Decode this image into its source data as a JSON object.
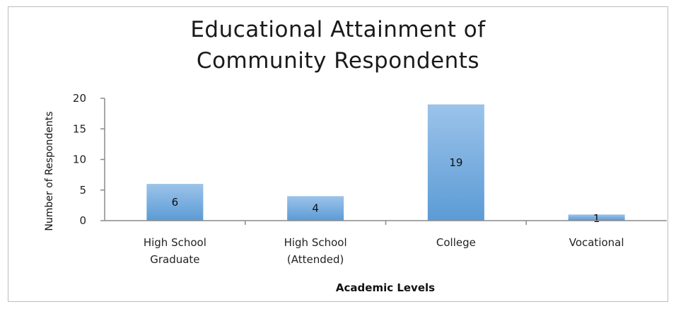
{
  "chart_data": {
    "type": "bar",
    "title_lines": [
      "Educational Attainment of",
      "Community Respondents"
    ],
    "categories": [
      [
        "High School",
        "Graduate"
      ],
      [
        "High School",
        "(Attended)"
      ],
      [
        "College"
      ],
      [
        "Vocational"
      ]
    ],
    "values": [
      6,
      4,
      19,
      1
    ],
    "data_labels": [
      "6",
      "4",
      "19",
      "1"
    ],
    "xlabel": "Academic Levels",
    "ylabel": "Number of Respondents",
    "ylim": [
      0,
      20
    ],
    "yticks": [
      0,
      5,
      10,
      15,
      20
    ],
    "grid": false,
    "bar_color": "#5b9bd5",
    "bar_color_light": "#9cc3ea"
  }
}
